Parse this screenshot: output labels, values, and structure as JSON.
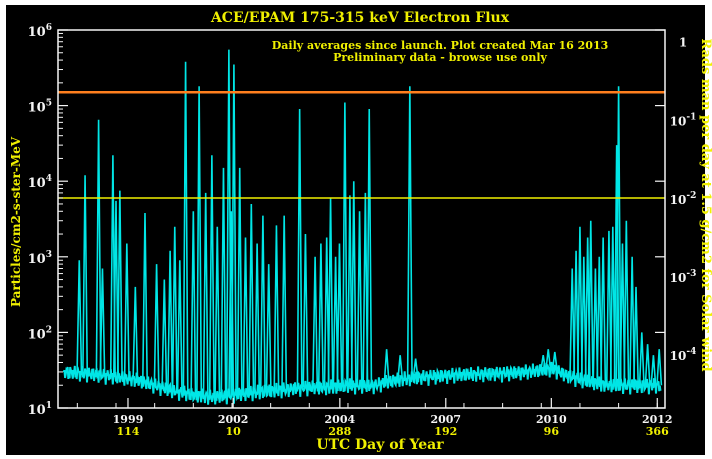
{
  "chart_data": {
    "type": "line",
    "title": "ACE/EPAM 175-315 keV Electron Flux",
    "subtitle_line1": "Daily averages since launch. Plot created Mar 16 2013",
    "subtitle_line2": "Preliminary data - browse use only",
    "xlabel": "UTC Day of Year",
    "ylabel": "Particles/cm2-s-ster-MeV",
    "y2label": "Rads man per day at 1.5 g/cm2 for Solar wind",
    "yscale": "log",
    "ylim": [
      10,
      1000000
    ],
    "xlim": [
      1997.5,
      2013.2
    ],
    "y_ticks": [
      {
        "base": "10",
        "exp": "1",
        "value": 10
      },
      {
        "base": "10",
        "exp": "2",
        "value": 100
      },
      {
        "base": "10",
        "exp": "3",
        "value": 1000
      },
      {
        "base": "10",
        "exp": "4",
        "value": 10000
      },
      {
        "base": "10",
        "exp": "5",
        "value": 100000
      },
      {
        "base": "10",
        "exp": "6",
        "value": 1000000
      }
    ],
    "y2_ticks": [
      {
        "label": "1",
        "base": "",
        "exp": "",
        "y": 700000
      },
      {
        "label": "",
        "base": "10",
        "exp": "-1",
        "y": 64000
      },
      {
        "label": "",
        "base": "10",
        "exp": "-2",
        "y": 5800
      },
      {
        "label": "",
        "base": "10",
        "exp": "-3",
        "y": 540
      },
      {
        "label": "",
        "base": "10",
        "exp": "-4",
        "y": 50
      }
    ],
    "x_ticks": [
      {
        "year": "1999",
        "doy": "114",
        "x": 1999.31
      },
      {
        "year": "2002",
        "doy": "10",
        "x": 2002.03
      },
      {
        "year": "2004",
        "doy": "288",
        "x": 2004.79
      },
      {
        "year": "2007",
        "doy": "192",
        "x": 2007.53
      },
      {
        "year": "2010",
        "doy": "96",
        "x": 2010.26
      },
      {
        "year": "2012",
        "doy": "366",
        "x": 2013.0
      }
    ],
    "thresholds": [
      {
        "y": 150000,
        "color": "#ff7f1e"
      },
      {
        "y": 6000,
        "color": "#f0f000"
      }
    ],
    "spikes": [
      [
        1998.05,
        900
      ],
      [
        1998.2,
        12000
      ],
      [
        1998.55,
        65000
      ],
      [
        1998.65,
        700
      ],
      [
        1998.92,
        22000
      ],
      [
        1999.0,
        5500
      ],
      [
        1999.1,
        7500
      ],
      [
        1999.28,
        1500
      ],
      [
        1999.5,
        400
      ],
      [
        1999.75,
        3800
      ],
      [
        2000.05,
        800
      ],
      [
        2000.25,
        500
      ],
      [
        2000.4,
        1200
      ],
      [
        2000.52,
        2500
      ],
      [
        2000.65,
        900
      ],
      [
        2000.8,
        380000
      ],
      [
        2001.0,
        4000
      ],
      [
        2001.15,
        180000
      ],
      [
        2001.32,
        7000
      ],
      [
        2001.48,
        22000
      ],
      [
        2001.62,
        2500
      ],
      [
        2001.78,
        15000
      ],
      [
        2001.92,
        550000
      ],
      [
        2001.98,
        4000
      ],
      [
        2002.05,
        350000
      ],
      [
        2002.2,
        15000
      ],
      [
        2002.35,
        1800
      ],
      [
        2002.5,
        5000
      ],
      [
        2002.65,
        1500
      ],
      [
        2002.8,
        3500
      ],
      [
        2002.95,
        800
      ],
      [
        2003.15,
        2600
      ],
      [
        2003.35,
        3500
      ],
      [
        2003.75,
        90000
      ],
      [
        2003.9,
        2000
      ],
      [
        2004.15,
        1000
      ],
      [
        2004.3,
        1500
      ],
      [
        2004.45,
        1800
      ],
      [
        2004.55,
        6000
      ],
      [
        2004.68,
        1000
      ],
      [
        2004.78,
        1500
      ],
      [
        2004.92,
        110000
      ],
      [
        2005.05,
        6500
      ],
      [
        2005.15,
        10000
      ],
      [
        2005.3,
        4000
      ],
      [
        2005.45,
        7000
      ],
      [
        2005.55,
        90000
      ],
      [
        2006.0,
        60
      ],
      [
        2006.35,
        50
      ],
      [
        2006.6,
        180000
      ],
      [
        2006.75,
        45
      ],
      [
        2010.05,
        50
      ],
      [
        2010.18,
        60
      ],
      [
        2010.35,
        55
      ],
      [
        2010.8,
        700
      ],
      [
        2010.9,
        1200
      ],
      [
        2011.0,
        2500
      ],
      [
        2011.1,
        1000
      ],
      [
        2011.2,
        1800
      ],
      [
        2011.28,
        3000
      ],
      [
        2011.4,
        700
      ],
      [
        2011.5,
        1000
      ],
      [
        2011.6,
        1800
      ],
      [
        2011.75,
        2200
      ],
      [
        2011.85,
        2500
      ],
      [
        2011.95,
        30000
      ],
      [
        2012.0,
        180000
      ],
      [
        2012.1,
        1500
      ],
      [
        2012.2,
        3000
      ],
      [
        2012.35,
        1000
      ],
      [
        2012.45,
        400
      ],
      [
        2012.6,
        100
      ],
      [
        2012.75,
        70
      ],
      [
        2012.9,
        50
      ],
      [
        2013.05,
        60
      ]
    ],
    "baseline": [
      [
        1997.65,
        30
      ],
      [
        1998.5,
        28
      ],
      [
        1999.0,
        26
      ],
      [
        1999.5,
        24
      ],
      [
        2000.0,
        20
      ],
      [
        2000.5,
        17
      ],
      [
        2001.0,
        15
      ],
      [
        2001.5,
        14
      ],
      [
        2002.0,
        15
      ],
      [
        2002.5,
        16
      ],
      [
        2003.0,
        17
      ],
      [
        2003.5,
        18
      ],
      [
        2004.0,
        19
      ],
      [
        2004.5,
        19
      ],
      [
        2005.0,
        20
      ],
      [
        2005.5,
        20
      ],
      [
        2005.7,
        20
      ],
      [
        2005.95,
        22
      ],
      [
        2006.3,
        24
      ],
      [
        2007.0,
        26
      ],
      [
        2008.0,
        28
      ],
      [
        2009.0,
        29
      ],
      [
        2009.5,
        30
      ],
      [
        2010.0,
        32
      ],
      [
        2010.3,
        33
      ],
      [
        2010.6,
        28
      ],
      [
        2011.0,
        24
      ],
      [
        2011.5,
        21
      ],
      [
        2012.0,
        20
      ],
      [
        2012.5,
        20
      ],
      [
        2013.1,
        20
      ]
    ],
    "colors": {
      "background": "#000000",
      "frame_bg": "#ffffff",
      "axes": "#f5f5f5",
      "labels": "#f0f000",
      "data": "#00e6e6"
    }
  }
}
